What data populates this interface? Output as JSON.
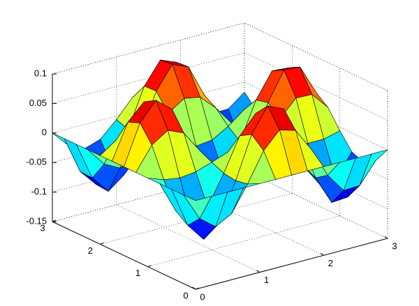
{
  "chart_data": {
    "type": "surface",
    "colormap": "jet",
    "grid": true,
    "x": [
      0,
      0.25,
      0.5,
      0.75,
      1,
      1.25,
      1.5,
      1.75,
      2,
      2.25,
      2.5,
      2.75,
      3
    ],
    "y": [
      0,
      0.25,
      0.5,
      0.75,
      1,
      1.25,
      1.5,
      1.75,
      2,
      2.25,
      2.5,
      2.75,
      3
    ],
    "z": [
      [
        0,
        0,
        0,
        0,
        0,
        0,
        0,
        0,
        0,
        0,
        0,
        0,
        0
      ],
      [
        0,
        -0.047,
        -0.068,
        -0.053,
        -0.01,
        0.039,
        0.067,
        0.059,
        0.019,
        -0.031,
        -0.064,
        -0.063,
        -0.028
      ],
      [
        0,
        -0.068,
        -0.099,
        -0.078,
        -0.014,
        0.057,
        0.098,
        0.086,
        0.028,
        -0.045,
        -0.094,
        -0.092,
        -0.041
      ],
      [
        0,
        -0.053,
        -0.078,
        -0.061,
        -0.011,
        0.045,
        0.076,
        0.067,
        0.022,
        -0.035,
        -0.073,
        -0.071,
        -0.032
      ],
      [
        0,
        -0.01,
        -0.014,
        -0.011,
        -0.002,
        0.008,
        0.014,
        0.012,
        0.004,
        -0.006,
        -0.013,
        -0.013,
        -0.006
      ],
      [
        0,
        0.039,
        0.057,
        0.045,
        0.008,
        -0.033,
        -0.056,
        -0.049,
        -0.016,
        0.026,
        0.054,
        0.053,
        0.024
      ],
      [
        0,
        0.067,
        0.098,
        0.076,
        0.014,
        -0.056,
        -0.096,
        -0.084,
        -0.027,
        0.044,
        0.092,
        0.09,
        0.04
      ],
      [
        0,
        0.059,
        0.086,
        0.067,
        0.012,
        -0.049,
        -0.084,
        -0.074,
        -0.024,
        0.039,
        0.081,
        0.079,
        0.035
      ],
      [
        0,
        0.019,
        0.028,
        0.022,
        0.004,
        -0.016,
        -0.027,
        -0.024,
        -0.008,
        0.013,
        0.026,
        0.026,
        0.012
      ],
      [
        0,
        -0.031,
        -0.045,
        -0.035,
        -0.006,
        0.026,
        0.044,
        0.039,
        0.013,
        -0.02,
        -0.042,
        -0.041,
        -0.019
      ],
      [
        0,
        -0.064,
        -0.094,
        -0.073,
        -0.013,
        0.054,
        0.092,
        0.081,
        0.026,
        -0.042,
        -0.088,
        -0.086,
        -0.039
      ],
      [
        0,
        -0.063,
        -0.092,
        -0.071,
        -0.013,
        0.053,
        0.09,
        0.079,
        0.026,
        -0.041,
        -0.086,
        -0.084,
        -0.038
      ],
      [
        0,
        -0.028,
        -0.041,
        -0.032,
        -0.006,
        0.024,
        0.04,
        0.035,
        0.012,
        -0.019,
        -0.039,
        -0.038,
        -0.017
      ]
    ],
    "xlim": [
      0,
      3
    ],
    "ylim": [
      0,
      3
    ],
    "zlim": [
      -0.15,
      0.1
    ],
    "xticks": [
      0,
      1,
      2,
      3
    ],
    "yticks": [
      0,
      1,
      2,
      3
    ],
    "zticks": [
      -0.15,
      -0.1,
      -0.05,
      0,
      0.05,
      0.1
    ]
  }
}
